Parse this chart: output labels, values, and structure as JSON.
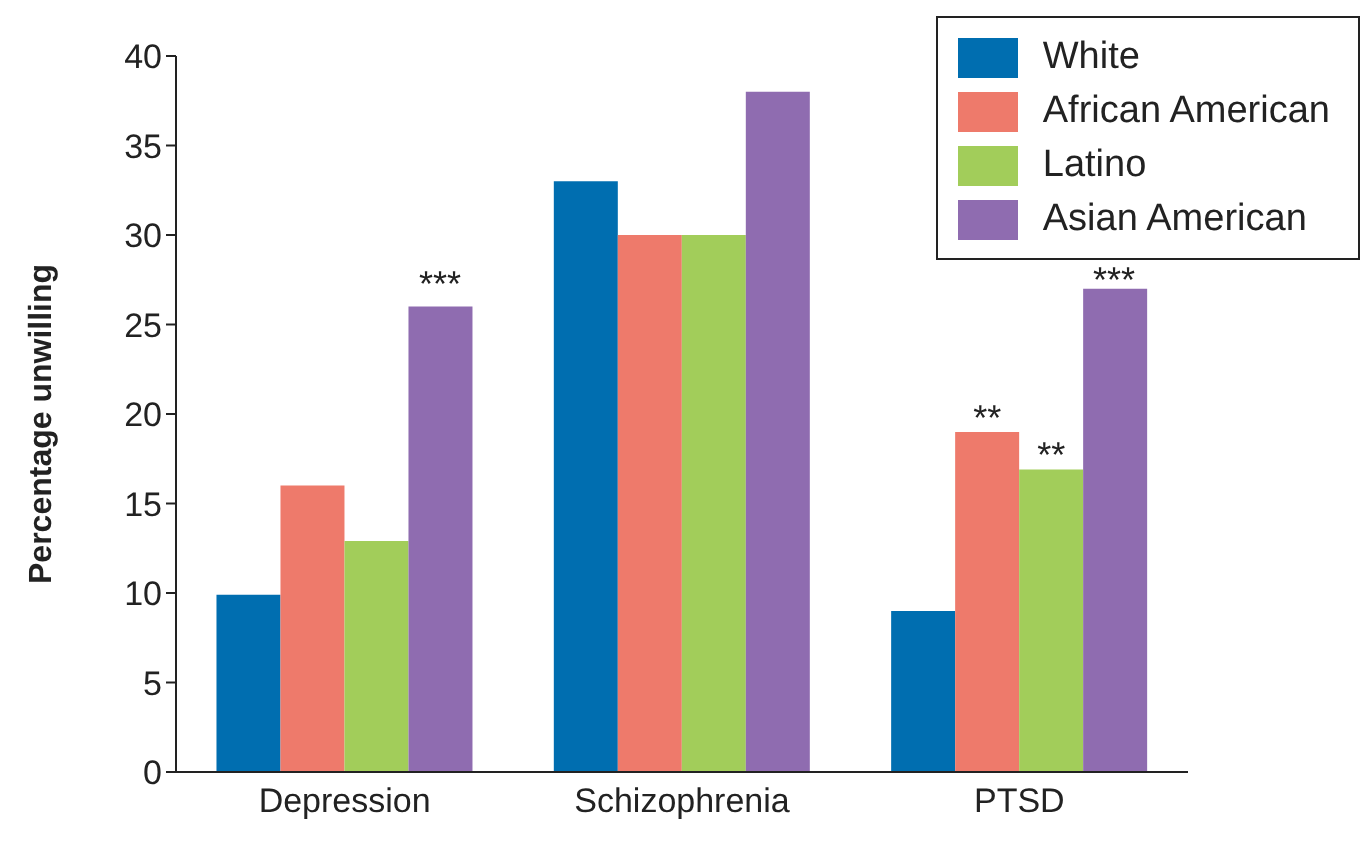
{
  "chart_data": {
    "type": "bar",
    "ylabel": "Percentage unwilling",
    "categories": [
      "Depression",
      "Schizophrenia",
      "PTSD"
    ],
    "series": [
      {
        "name": "White",
        "color": "#006eb0",
        "values": [
          9.9,
          33,
          9
        ]
      },
      {
        "name": "African American",
        "color": "#ee7a6b",
        "values": [
          16,
          30,
          19
        ]
      },
      {
        "name": "Latino",
        "color": "#a2cd5a",
        "values": [
          12.9,
          30,
          16.9
        ]
      },
      {
        "name": "Asian American",
        "color": "#8f6cb0",
        "values": [
          26,
          38,
          27
        ]
      }
    ],
    "ylim": [
      0,
      40
    ],
    "yticks": [
      0,
      5,
      10,
      15,
      20,
      25,
      30,
      35,
      40
    ],
    "grid": false,
    "legend": "top right",
    "annotations": [
      "***",
      {
        "text": "**",
        "x": "PTSD",
        "y": 19
      },
      {
        "text": "**",
        "x": "PTSD",
        "y": 16.9
      },
      "***"
    ]
  }
}
